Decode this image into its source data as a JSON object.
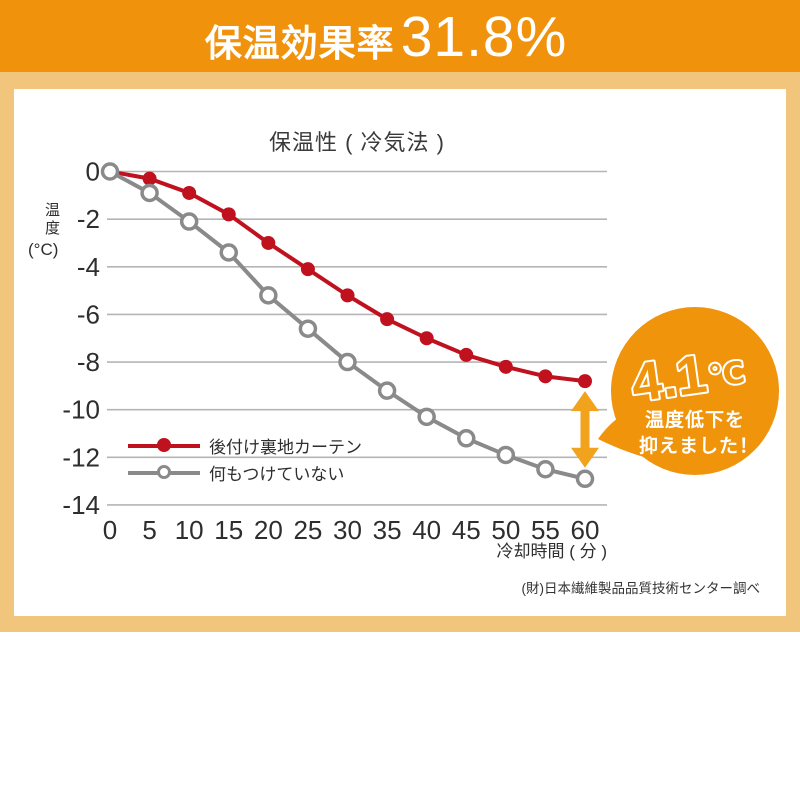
{
  "header": {
    "label": "保温効果率",
    "value": "31.8%"
  },
  "chart": {
    "title": "保温性 ( 冷気法 )",
    "y_axis_label": "温度",
    "y_axis_unit": "(°C)",
    "x_axis_label": "冷却時間 ( 分 )",
    "source_note": "(財)日本繊維製品品質技術センター調べ"
  },
  "chart_data": {
    "type": "line",
    "title": "保温性 ( 冷気法 )",
    "xlabel": "冷却時間 ( 分 )",
    "ylabel": "温度 (°C)",
    "x": [
      0,
      5,
      10,
      15,
      20,
      25,
      30,
      35,
      40,
      45,
      50,
      55,
      60
    ],
    "series": [
      {
        "name": "後付け裏地カーテン",
        "color": "#c0111f",
        "marker": "filled",
        "values": [
          0,
          -0.3,
          -0.9,
          -1.8,
          -3.0,
          -4.1,
          -5.2,
          -6.2,
          -7.0,
          -7.7,
          -8.2,
          -8.6,
          -8.8
        ]
      },
      {
        "name": "何もつけていない",
        "color": "#8a8a8a",
        "marker": "open",
        "values": [
          0,
          -0.9,
          -2.1,
          -3.4,
          -5.2,
          -6.6,
          -8.0,
          -9.2,
          -10.3,
          -11.2,
          -11.9,
          -12.5,
          -12.9
        ]
      }
    ],
    "ylim": [
      -14,
      0
    ],
    "yticks": [
      0,
      -2,
      -4,
      -6,
      -8,
      -10,
      -12,
      -14
    ],
    "grid": true,
    "legend_position": "lower-left",
    "annotation": {
      "difference_at_x60": 4.1
    }
  },
  "badge": {
    "value": "4.1",
    "unit": "℃",
    "line1": "温度低下を",
    "line2": "抑えました！"
  },
  "colors": {
    "header_bg": "#f0920b",
    "frame_bg": "#f2c57d",
    "card_bg": "#ffffff",
    "badge_bg": "#f0940b",
    "arrow": "#f2a31e",
    "grid": "#b5b5b5",
    "series_red": "#c0111f",
    "series_gray": "#8a8a8a",
    "text": "#2e2e2e"
  }
}
